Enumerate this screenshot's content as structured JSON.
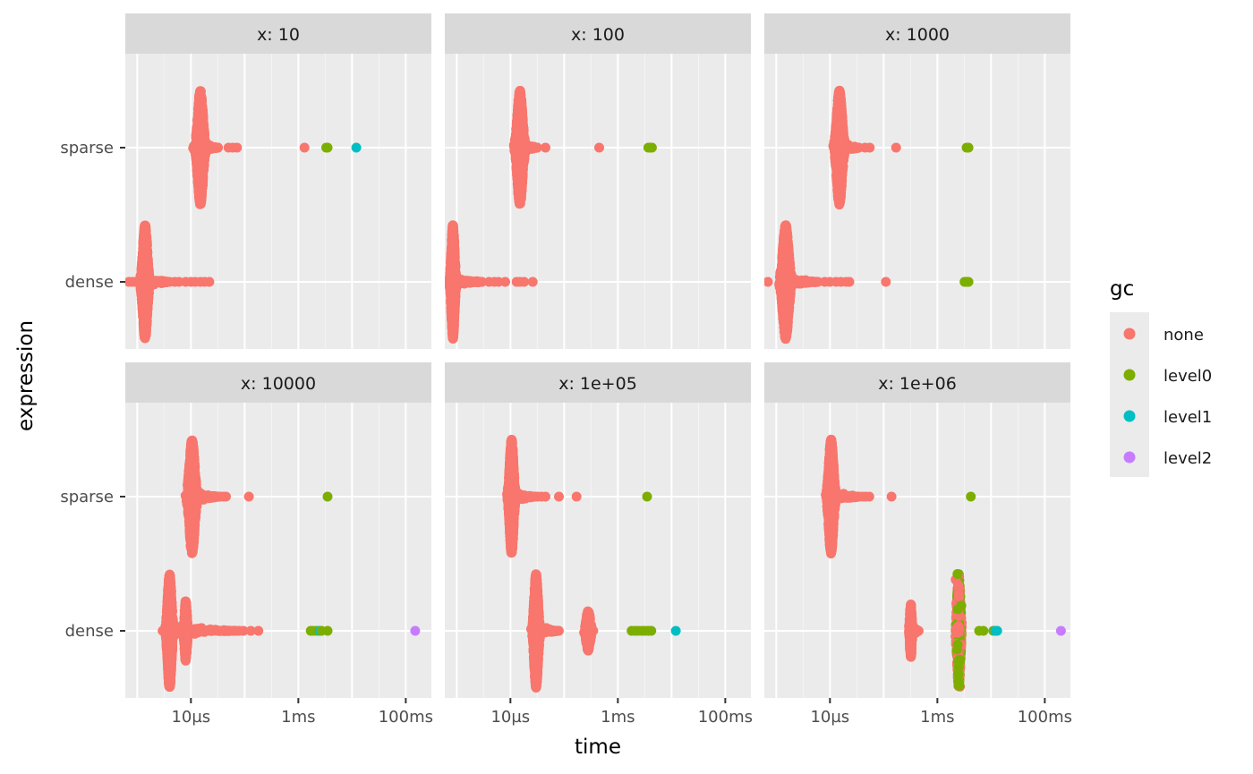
{
  "chart_data": {
    "type": "scatter",
    "layout": "faceted beeswarm, 2 rows x 3 columns, shared axes",
    "x_axis": {
      "label": "time",
      "scale": "log10",
      "unit": "seconds",
      "range": [
        6e-07,
        0.3
      ],
      "ticks": [
        {
          "value": 1e-05,
          "label": "10µs"
        },
        {
          "value": 0.001,
          "label": "1ms"
        },
        {
          "value": 0.1,
          "label": "100ms"
        }
      ]
    },
    "y_axis": {
      "label": "expression",
      "categories": [
        "dense",
        "sparse"
      ]
    },
    "grid": true,
    "legend": {
      "title": "gc",
      "position": "right",
      "entries": [
        {
          "key": "none",
          "label": "none",
          "color": "#F8766D"
        },
        {
          "key": "level0",
          "label": "level0",
          "color": "#7CAE00"
        },
        {
          "key": "level1",
          "label": "level1",
          "color": "#00BFC4"
        },
        {
          "key": "level2",
          "label": "level2",
          "color": "#C77CFF"
        }
      ]
    },
    "panels": [
      {
        "strip": "x: 10",
        "groups": [
          {
            "expression": "sparse",
            "center": 1.5e-05,
            "spread": 0.08,
            "halfwidth": 0.85,
            "tail_to": 3.2e-05,
            "n": 1500,
            "outliers": [
              {
                "x": 5e-05,
                "gc": "none"
              },
              {
                "x": 6e-05,
                "gc": "none"
              },
              {
                "x": 7.2e-05,
                "gc": "none"
              },
              {
                "x": 0.0013,
                "gc": "none"
              },
              {
                "x": 0.0033,
                "gc": "level0"
              },
              {
                "x": 0.0035,
                "gc": "level0"
              },
              {
                "x": 0.012,
                "gc": "level1"
              }
            ]
          },
          {
            "expression": "dense",
            "center": 1.4e-06,
            "spread": 0.07,
            "halfwidth": 0.85,
            "tail_to": 4e-06,
            "n": 1500,
            "outliers": [
              {
                "x": 7e-07,
                "gc": "none"
              },
              {
                "x": 8e-07,
                "gc": "none"
              },
              {
                "x": 9e-07,
                "gc": "none"
              },
              {
                "x": 5e-06,
                "gc": "none"
              },
              {
                "x": 6e-06,
                "gc": "none"
              },
              {
                "x": 8e-06,
                "gc": "none"
              },
              {
                "x": 1e-05,
                "gc": "none"
              },
              {
                "x": 1.2e-05,
                "gc": "none"
              },
              {
                "x": 1.5e-05,
                "gc": "none"
              },
              {
                "x": 1.8e-05,
                "gc": "none"
              },
              {
                "x": 2.2e-05,
                "gc": "none"
              }
            ]
          }
        ]
      },
      {
        "strip": "x: 100",
        "groups": [
          {
            "expression": "sparse",
            "center": 1.5e-05,
            "spread": 0.08,
            "halfwidth": 0.85,
            "tail_to": 3.2e-05,
            "n": 1500,
            "outliers": [
              {
                "x": 4.5e-05,
                "gc": "none"
              },
              {
                "x": 0.00045,
                "gc": "none"
              },
              {
                "x": 0.0037,
                "gc": "level0"
              },
              {
                "x": 0.004,
                "gc": "level0"
              },
              {
                "x": 0.0043,
                "gc": "level0"
              }
            ]
          },
          {
            "expression": "dense",
            "center": 8.5e-07,
            "spread": 0.05,
            "halfwidth": 0.85,
            "tail_to": 3e-06,
            "n": 1500,
            "outliers": [
              {
                "x": 4e-06,
                "gc": "none"
              },
              {
                "x": 5e-06,
                "gc": "none"
              },
              {
                "x": 6e-06,
                "gc": "none"
              },
              {
                "x": 8e-06,
                "gc": "none"
              },
              {
                "x": 1.3e-05,
                "gc": "none"
              },
              {
                "x": 1.5e-05,
                "gc": "none"
              },
              {
                "x": 1.8e-05,
                "gc": "none"
              },
              {
                "x": 2.6e-05,
                "gc": "none"
              }
            ]
          }
        ]
      },
      {
        "strip": "x: 1000",
        "groups": [
          {
            "expression": "sparse",
            "center": 1.5e-05,
            "spread": 0.08,
            "halfwidth": 0.85,
            "tail_to": 3.5e-05,
            "n": 1500,
            "outliers": [
              {
                "x": 4.5e-05,
                "gc": "none"
              },
              {
                "x": 5.5e-05,
                "gc": "none"
              },
              {
                "x": 0.00017,
                "gc": "none"
              },
              {
                "x": 0.0035,
                "gc": "level0"
              },
              {
                "x": 0.0038,
                "gc": "level0"
              }
            ]
          },
          {
            "expression": "dense",
            "center": 1.5e-06,
            "spread": 0.09,
            "halfwidth": 0.85,
            "tail_to": 6e-06,
            "n": 1500,
            "outliers": [
              {
                "x": 7e-07,
                "gc": "none"
              },
              {
                "x": 8e-06,
                "gc": "none"
              },
              {
                "x": 1e-05,
                "gc": "none"
              },
              {
                "x": 1.3e-05,
                "gc": "none"
              },
              {
                "x": 1.6e-05,
                "gc": "none"
              },
              {
                "x": 2e-05,
                "gc": "none"
              },
              {
                "x": 2.3e-05,
                "gc": "none"
              },
              {
                "x": 0.00011,
                "gc": "none"
              },
              {
                "x": 0.0032,
                "gc": "level0"
              },
              {
                "x": 0.0035,
                "gc": "level0"
              },
              {
                "x": 0.0038,
                "gc": "level0"
              }
            ]
          }
        ]
      },
      {
        "strip": "x: 10000",
        "groups": [
          {
            "expression": "sparse",
            "center": 1.05e-05,
            "spread": 0.08,
            "halfwidth": 0.85,
            "tail_to": 3.5e-05,
            "n": 1500,
            "outliers": [
              {
                "x": 4e-05,
                "gc": "none"
              },
              {
                "x": 4.5e-05,
                "gc": "none"
              },
              {
                "x": 0.00012,
                "gc": "none"
              },
              {
                "x": 0.0035,
                "gc": "level0"
              }
            ]
          },
          {
            "expression": "dense",
            "center": 4e-06,
            "spread": 0.06,
            "halfwidth": 0.85,
            "tail_to": 7e-05,
            "n": 1700,
            "extra_cluster": {
              "center": 8e-06,
              "spread": 0.04,
              "halfwidth": 0.45,
              "n": 300
            },
            "outliers": [
              {
                "x": 8e-05,
                "gc": "none"
              },
              {
                "x": 9.5e-05,
                "gc": "none"
              },
              {
                "x": 0.00013,
                "gc": "none"
              },
              {
                "x": 0.00018,
                "gc": "none"
              },
              {
                "x": 0.0017,
                "gc": "level0"
              },
              {
                "x": 0.0019,
                "gc": "level0"
              },
              {
                "x": 0.0022,
                "gc": "level0"
              },
              {
                "x": 0.0025,
                "gc": "level1"
              },
              {
                "x": 0.0027,
                "gc": "level0"
              },
              {
                "x": 0.0035,
                "gc": "level0"
              },
              {
                "x": 0.15,
                "gc": "level2"
              }
            ]
          }
        ]
      },
      {
        "strip": "x: 1e+05",
        "groups": [
          {
            "expression": "sparse",
            "center": 1.05e-05,
            "spread": 0.06,
            "halfwidth": 0.85,
            "tail_to": 2.8e-05,
            "n": 1500,
            "outliers": [
              {
                "x": 3.2e-05,
                "gc": "none"
              },
              {
                "x": 3.8e-05,
                "gc": "none"
              },
              {
                "x": 4.5e-05,
                "gc": "none"
              },
              {
                "x": 8e-05,
                "gc": "none"
              },
              {
                "x": 0.00017,
                "gc": "none"
              },
              {
                "x": 0.0035,
                "gc": "level0"
              }
            ]
          },
          {
            "expression": "dense",
            "center": 3e-05,
            "spread": 0.06,
            "halfwidth": 0.85,
            "tail_to": 8e-05,
            "n": 1500,
            "extra_cluster": {
              "center": 0.00028,
              "spread": 0.06,
              "halfwidth": 0.3,
              "n": 250
            },
            "outliers": [
              {
                "x": 0.0018,
                "gc": "level0"
              },
              {
                "x": 0.0021,
                "gc": "level0"
              },
              {
                "x": 0.0024,
                "gc": "level0"
              },
              {
                "x": 0.0028,
                "gc": "level0"
              },
              {
                "x": 0.0032,
                "gc": "level0"
              },
              {
                "x": 0.0037,
                "gc": "level0"
              },
              {
                "x": 0.0042,
                "gc": "level0"
              },
              {
                "x": 0.012,
                "gc": "level1"
              }
            ]
          }
        ]
      },
      {
        "strip": "x: 1e+06",
        "groups": [
          {
            "expression": "sparse",
            "center": 1.05e-05,
            "spread": 0.07,
            "halfwidth": 0.85,
            "tail_to": 3.5e-05,
            "n": 1500,
            "outliers": [
              {
                "x": 4e-05,
                "gc": "none"
              },
              {
                "x": 4.6e-05,
                "gc": "none"
              },
              {
                "x": 5.4e-05,
                "gc": "none"
              },
              {
                "x": 0.00014,
                "gc": "none"
              },
              {
                "x": 0.0042,
                "gc": "level0"
              }
            ]
          },
          {
            "expression": "dense",
            "center": 0.00032,
            "spread": 0.03,
            "halfwidth": 0.4,
            "tail_to": 0.00045,
            "n": 350,
            "extra_cluster": {
              "center": 0.0025,
              "spread": 0.05,
              "halfwidth": 0.85,
              "n": 700,
              "mixed_gc": [
                "none",
                "level0"
              ]
            },
            "outliers": [
              {
                "x": 0.006,
                "gc": "level0"
              },
              {
                "x": 0.0072,
                "gc": "level0"
              },
              {
                "x": 0.011,
                "gc": "level0"
              },
              {
                "x": 0.012,
                "gc": "level1"
              },
              {
                "x": 0.013,
                "gc": "level1"
              },
              {
                "x": 0.2,
                "gc": "level2"
              }
            ]
          }
        ]
      }
    ]
  }
}
